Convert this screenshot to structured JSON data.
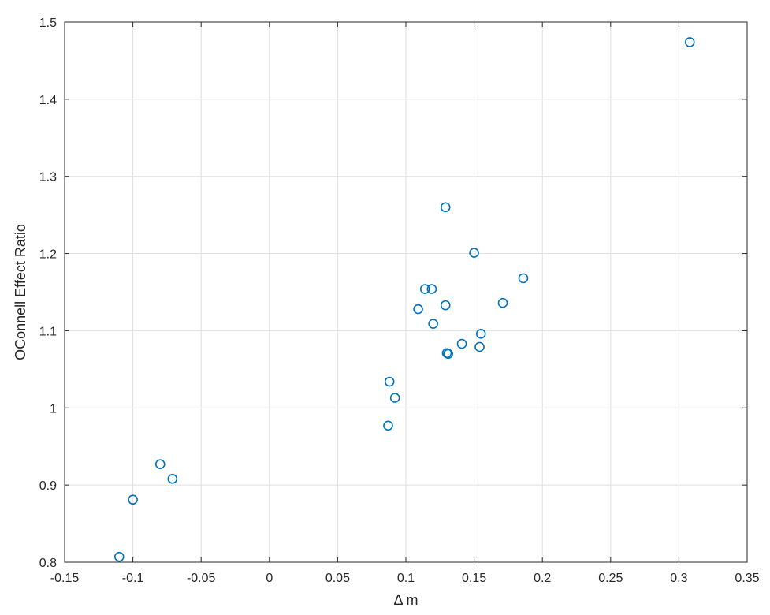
{
  "chart_data": {
    "type": "scatter",
    "title": "",
    "xlabel": "Δ m",
    "ylabel": "OConnell Effect Ratio",
    "xlim": [
      -0.15,
      0.35
    ],
    "ylim": [
      0.8,
      1.5
    ],
    "grid": true,
    "marker": "open-circle",
    "color": "#0072BD",
    "x_ticks": [
      "-0.15",
      "-0.1",
      "-0.05",
      "0",
      "0.05",
      "0.1",
      "0.15",
      "0.2",
      "0.25",
      "0.3",
      "0.35"
    ],
    "y_ticks": [
      "0.8",
      "0.9",
      "1",
      "1.1",
      "1.2",
      "1.3",
      "1.4",
      "1.5"
    ],
    "series": [
      {
        "points": [
          {
            "x": -0.11,
            "y": 0.807
          },
          {
            "x": -0.1,
            "y": 0.881
          },
          {
            "x": -0.08,
            "y": 0.927
          },
          {
            "x": -0.071,
            "y": 0.908
          },
          {
            "x": 0.087,
            "y": 0.977
          },
          {
            "x": 0.088,
            "y": 1.034
          },
          {
            "x": 0.092,
            "y": 1.013
          },
          {
            "x": 0.109,
            "y": 1.128
          },
          {
            "x": 0.114,
            "y": 1.154
          },
          {
            "x": 0.119,
            "y": 1.154
          },
          {
            "x": 0.12,
            "y": 1.109
          },
          {
            "x": 0.129,
            "y": 1.26
          },
          {
            "x": 0.129,
            "y": 1.133
          },
          {
            "x": 0.13,
            "y": 1.071
          },
          {
            "x": 0.131,
            "y": 1.07
          },
          {
            "x": 0.141,
            "y": 1.083
          },
          {
            "x": 0.15,
            "y": 1.201
          },
          {
            "x": 0.154,
            "y": 1.079
          },
          {
            "x": 0.155,
            "y": 1.096
          },
          {
            "x": 0.171,
            "y": 1.136
          },
          {
            "x": 0.186,
            "y": 1.168
          },
          {
            "x": 0.308,
            "y": 1.474
          }
        ]
      }
    ]
  }
}
